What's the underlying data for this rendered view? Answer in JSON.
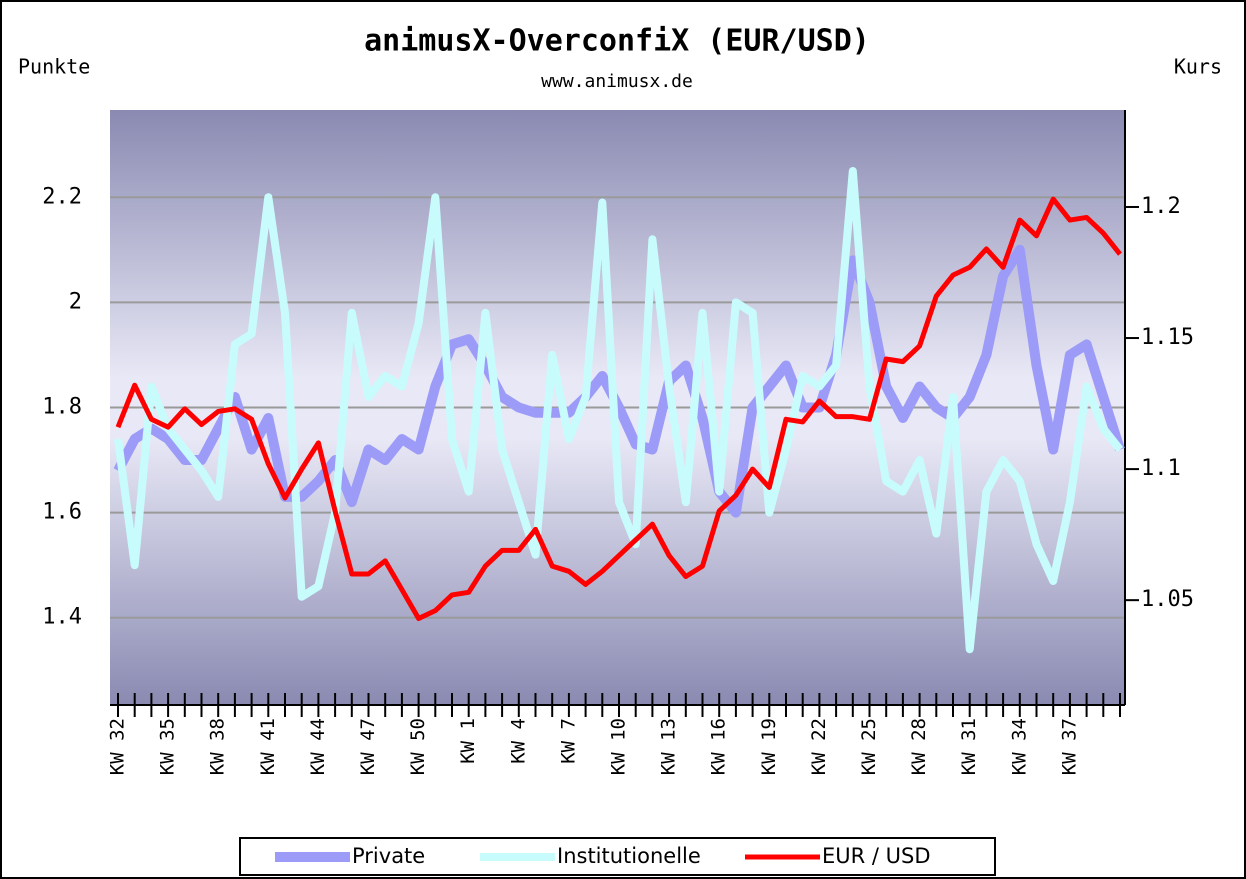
{
  "chart_data": {
    "type": "line",
    "title": "animusX-OverconfiX (EUR/USD)",
    "subtitle": "www.animusx.de",
    "y_label": "Punkte",
    "y2_label": "Kurs",
    "categories": [
      "KW 32",
      null,
      null,
      "KW 35",
      null,
      null,
      "KW 38",
      null,
      null,
      "KW 41",
      null,
      null,
      "KW 44",
      null,
      null,
      "KW 47",
      null,
      null,
      "KW 50",
      null,
      null,
      "KW 1",
      null,
      null,
      "KW 4",
      null,
      null,
      "KW 7",
      null,
      null,
      "KW 10",
      null,
      null,
      "KW 13",
      null,
      null,
      "KW 16",
      null,
      null,
      "KW 19",
      null,
      null,
      "KW 22",
      null,
      null,
      "KW 25",
      null,
      null,
      "KW 28",
      null,
      null,
      "KW 31",
      null,
      null,
      "KW 34",
      null,
      null,
      "KW 37",
      null,
      null,
      null
    ],
    "series": [
      {
        "name": "Private",
        "color": "#9c9cf8",
        "width": 10,
        "values": [
          1.68,
          1.74,
          1.76,
          1.74,
          1.7,
          1.7,
          1.76,
          1.82,
          1.72,
          1.78,
          1.63,
          1.63,
          1.66,
          1.7,
          1.62,
          1.72,
          1.7,
          1.74,
          1.72,
          1.84,
          1.92,
          1.93,
          1.88,
          1.82,
          1.8,
          1.79,
          1.79,
          1.79,
          1.82,
          1.86,
          1.8,
          1.73,
          1.72,
          1.85,
          1.88,
          1.78,
          1.64,
          1.6,
          1.8,
          1.84,
          1.88,
          1.8,
          1.8,
          1.9,
          2.08,
          2.0,
          1.84,
          1.78,
          1.84,
          1.8,
          1.78,
          1.82,
          1.9,
          2.05,
          2.1,
          1.88,
          1.72,
          1.9,
          1.92,
          1.82,
          1.72
        ]
      },
      {
        "name": "Institutionelle",
        "color": "#c8fcfc",
        "width": 8,
        "values": [
          1.74,
          1.5,
          1.84,
          1.76,
          1.72,
          1.68,
          1.63,
          1.92,
          1.94,
          2.2,
          1.98,
          1.44,
          1.46,
          1.6,
          1.98,
          1.82,
          1.86,
          1.84,
          1.96,
          2.2,
          1.74,
          1.64,
          1.98,
          1.72,
          1.62,
          1.52,
          1.9,
          1.74,
          1.82,
          2.19,
          1.62,
          1.54,
          2.12,
          1.84,
          1.62,
          1.98,
          1.64,
          2.0,
          1.98,
          1.6,
          1.72,
          1.86,
          1.84,
          1.88,
          2.25,
          1.84,
          1.66,
          1.64,
          1.7,
          1.56,
          1.82,
          1.34,
          1.64,
          1.7,
          1.66,
          1.54,
          1.47,
          1.62,
          1.84,
          1.76,
          1.72
        ]
      },
      {
        "name": "EUR / USD",
        "color": "#ff0000",
        "width": 5,
        "axis": "y2",
        "values": [
          1.116,
          1.132,
          1.119,
          1.116,
          1.123,
          1.117,
          1.122,
          1.123,
          1.119,
          1.102,
          1.089,
          1.1,
          1.11,
          1.084,
          1.06,
          1.06,
          1.065,
          1.054,
          1.043,
          1.046,
          1.052,
          1.053,
          1.063,
          1.069,
          1.069,
          1.077,
          1.063,
          1.061,
          1.056,
          1.061,
          1.067,
          1.073,
          1.079,
          1.067,
          1.059,
          1.063,
          1.084,
          1.09,
          1.1,
          1.093,
          1.119,
          1.118,
          1.126,
          1.12,
          1.12,
          1.119,
          1.142,
          1.141,
          1.147,
          1.166,
          1.174,
          1.177,
          1.184,
          1.177,
          1.195,
          1.189,
          1.203,
          1.195,
          1.196,
          1.19,
          1.182
        ]
      }
    ],
    "ylim": [
      1.234,
      2.366
    ],
    "yticks": [
      1.4,
      1.6,
      1.8,
      2,
      2.2
    ],
    "y2lim": [
      1.01,
      1.237
    ],
    "y2ticks": [
      1.05,
      1.1,
      1.15,
      1.2
    ],
    "grid": true,
    "legend": "bottom"
  }
}
